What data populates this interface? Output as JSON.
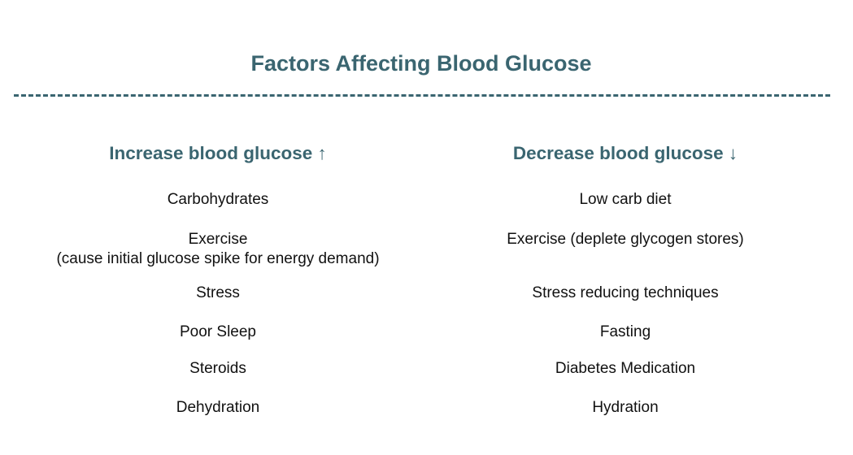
{
  "title": "Factors Affecting Blood Glucose",
  "accent_color": "#3a6570",
  "columns": {
    "increase": {
      "heading": "Increase blood glucose ↑",
      "items": [
        {
          "text": "Carbohydrates",
          "note": ""
        },
        {
          "text": "Exercise",
          "note": "(cause initial glucose spike for energy demand)"
        },
        {
          "text": "Stress",
          "note": ""
        },
        {
          "text": "Poor Sleep",
          "note": ""
        },
        {
          "text": "Steroids",
          "note": ""
        },
        {
          "text": "Dehydration",
          "note": ""
        }
      ]
    },
    "decrease": {
      "heading": "Decrease blood glucose ↓",
      "items": [
        {
          "text": "Low carb diet"
        },
        {
          "text": "Exercise (deplete glycogen stores)"
        },
        {
          "text": "Stress reducing techniques"
        },
        {
          "text": "Fasting"
        },
        {
          "text": "Diabetes Medication"
        },
        {
          "text": "Hydration"
        }
      ]
    }
  }
}
